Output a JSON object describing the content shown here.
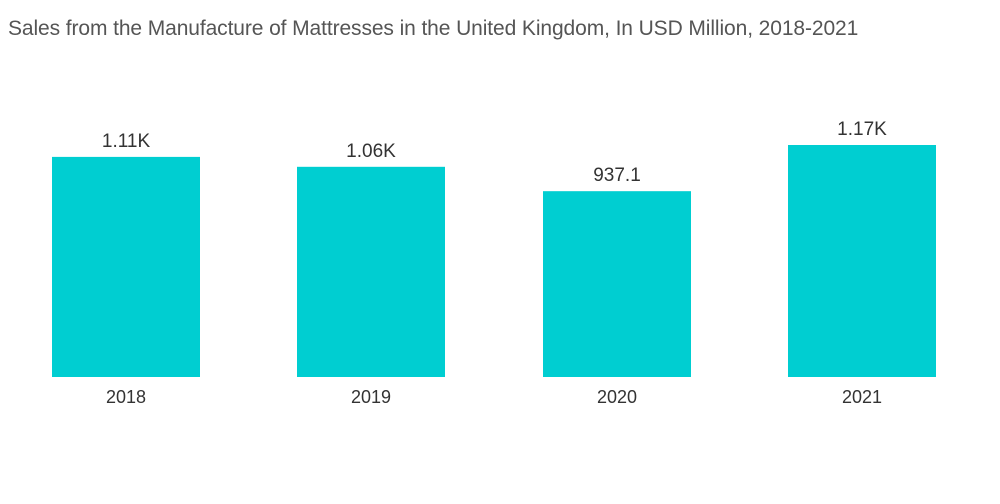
{
  "chart_data": {
    "type": "bar",
    "title": "Sales from the Manufacture of Mattresses in the United Kingdom, In USD Million, 2018-2021",
    "categories": [
      "2018",
      "2019",
      "2020",
      "2021"
    ],
    "values": [
      1110,
      1060,
      937.1,
      1170
    ],
    "data_labels": [
      "1.11K",
      "1.06K",
      "937.1",
      "1.17K"
    ],
    "xlabel": "",
    "ylabel": "",
    "ylim": [
      0,
      1170
    ],
    "grid": false,
    "legend": "none",
    "bar_color": "#00CED1"
  }
}
